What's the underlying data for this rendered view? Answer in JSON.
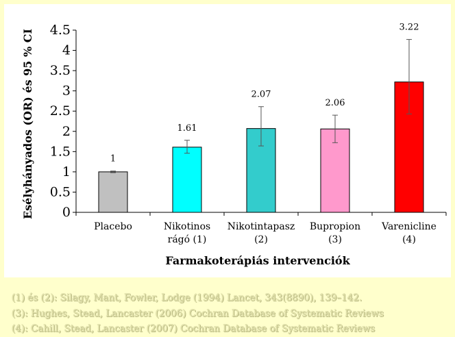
{
  "chart_data": {
    "type": "bar",
    "categories": [
      [
        "Placebo"
      ],
      [
        "Nikotinos",
        "rágó (1)"
      ],
      [
        "Nikotintapasz",
        "(2)"
      ],
      [
        "Bupropion",
        "(3)"
      ],
      [
        "Varenicline",
        "(4)"
      ]
    ],
    "values": [
      1,
      1.61,
      2.07,
      2.06,
      3.22
    ],
    "data_labels": [
      "1",
      "1.61",
      "2.07",
      "2.06",
      "3.22"
    ],
    "error_bars": [
      [
        0.98,
        1.02
      ],
      [
        1.46,
        1.78
      ],
      [
        1.64,
        2.61
      ],
      [
        1.72,
        2.4
      ],
      [
        2.43,
        4.27
      ]
    ],
    "colors": [
      "#c0c0c0",
      "#00ffff",
      "#33cccc",
      "#ff99cc",
      "#ff0000"
    ],
    "xlabel": "Farmakoterápiás intervenciók",
    "ylabel": "Esélyhányados (OR) és 95 % CI",
    "ylim": [
      0,
      4.5
    ],
    "yticks": [
      0,
      0.5,
      1,
      1.5,
      2,
      2.5,
      3,
      3.5,
      4,
      4.5
    ],
    "ytick_labels": [
      "0",
      "0.5",
      "1",
      "1.5",
      "2",
      "2.5",
      "3",
      "3.5",
      "4",
      "4.5"
    ],
    "grid": false,
    "legend": "none"
  },
  "references": [
    "(1) és (2): Silagy, Mant, Fowler, Lodge (1994) Lancet, 343(8890), 139–142.",
    "(3): Hughes, Stead, Lancaster (2006) Cochran Database of Systematic Reviews",
    "(4): Cahill, Stead, Lancaster (2007) Cochran Database of Systematic Reviews"
  ]
}
